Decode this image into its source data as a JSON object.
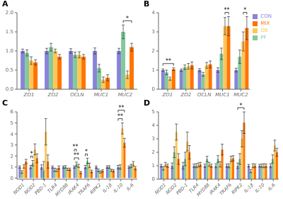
{
  "chart_data": [
    {
      "type": "bar",
      "title": "A",
      "categories": [
        "ZO1",
        "ZO2",
        "OCLN",
        "MUC1",
        "MUC2"
      ],
      "series": [
        {
          "name": "CON",
          "color": "#8884d8",
          "values": [
            1.0,
            1.0,
            1.0,
            1.0,
            1.0
          ],
          "errors": [
            0.05,
            0.07,
            0.06,
            0.08,
            0.07
          ]
        },
        {
          "name": "PF",
          "color": "#82ca9d",
          "values": [
            0.95,
            1.1,
            0.9,
            0.55,
            1.5
          ],
          "errors": [
            0.08,
            0.1,
            0.07,
            0.1,
            0.18
          ]
        },
        {
          "name": "OB",
          "color": "#ffc658",
          "values": [
            0.75,
            1.0,
            0.9,
            0.25,
            0.38
          ],
          "errors": [
            0.1,
            0.05,
            0.08,
            0.07,
            0.1
          ]
        },
        {
          "name": "MIX",
          "color": "#ff7300",
          "values": [
            0.7,
            0.85,
            0.85,
            0.3,
            1.1
          ],
          "errors": [
            0.07,
            0.06,
            0.06,
            0.08,
            0.1
          ]
        }
      ],
      "ylim": [
        0,
        2.0
      ],
      "yticks": [
        {
          "value": 0,
          "label": "0.0"
        },
        0.5,
        {
          "value": 1,
          "label": "1.0"
        },
        1.5,
        {
          "value": 2,
          "label": "2.0"
        }
      ],
      "annotations": [
        {
          "text": "*",
          "category": "MUC2",
          "from": "PF",
          "to": "MIX"
        }
      ]
    },
    {
      "type": "bar",
      "title": "B",
      "categories": [
        "ZO1",
        "ZO2",
        "OCLN",
        "MUC1",
        "MUC2"
      ],
      "series": [
        {
          "name": "CON",
          "color": "#8884d8",
          "values": [
            1.0,
            1.0,
            1.0,
            1.0,
            1.0
          ],
          "errors": [
            0.06,
            0.06,
            0.08,
            0.12,
            0.1
          ]
        },
        {
          "name": "PF",
          "color": "#82ca9d",
          "values": [
            0.88,
            1.15,
            0.78,
            1.85,
            1.7
          ],
          "errors": [
            0.12,
            0.12,
            0.1,
            0.3,
            0.35
          ]
        },
        {
          "name": "OB",
          "color": "#ffc658",
          "values": [
            0.55,
            1.2,
            1.25,
            3.3,
            2.5
          ],
          "errors": [
            0.08,
            0.15,
            0.15,
            0.45,
            0.5
          ]
        },
        {
          "name": "MIX",
          "color": "#ff7300",
          "values": [
            1.05,
            1.25,
            1.3,
            3.3,
            3.2
          ],
          "errors": [
            0.07,
            0.18,
            0.18,
            0.5,
            0.6
          ]
        }
      ],
      "ylim": [
        0,
        4.0
      ],
      "yticks": [
        0,
        1,
        2,
        3,
        4
      ],
      "legend": "upper right",
      "annotations": [
        {
          "text": "**",
          "category": "ZO1",
          "from": "CON",
          "to": "MIX"
        },
        {
          "text": "**",
          "category": "MUC1",
          "from": "OB",
          "to": "MIX"
        },
        {
          "text": "*",
          "category": "MUC2",
          "from": "OB",
          "to": "MIX"
        }
      ]
    },
    {
      "type": "bar",
      "title": "C",
      "categories": [
        "NOD1",
        "NOD2",
        "PBD-1",
        "TLR4",
        "MYD88",
        "IRAK4",
        "TRAF6",
        "RIPK2",
        "IL-1β",
        "IL-10",
        "IL-6"
      ],
      "series": [
        {
          "name": "CON",
          "color": "#8884d8",
          "values": [
            1.0,
            1.0,
            1.0,
            1.0,
            1.0,
            1.0,
            1.0,
            1.0,
            1.0,
            1.0,
            1.0
          ],
          "errors": [
            0.1,
            0.15,
            0.2,
            0.1,
            0.1,
            0.1,
            0.15,
            0.1,
            0.1,
            0.15,
            0.1
          ]
        },
        {
          "name": "PF",
          "color": "#82ca9d",
          "values": [
            0.55,
            1.35,
            0.7,
            0.75,
            1.0,
            1.25,
            1.55,
            0.7,
            1.0,
            1.0,
            1.1
          ],
          "errors": [
            0.12,
            0.25,
            0.8,
            0.15,
            0.12,
            0.2,
            0.25,
            0.12,
            0.12,
            0.2,
            0.15
          ]
        },
        {
          "name": "OB",
          "color": "#ffc658",
          "values": [
            1.05,
            2.6,
            4.2,
            0.7,
            0.8,
            1.1,
            1.15,
            0.55,
            0.7,
            4.5,
            1.3
          ],
          "errors": [
            0.15,
            0.5,
            1.2,
            0.12,
            0.1,
            0.15,
            0.2,
            0.1,
            0.1,
            0.5,
            0.2
          ]
        },
        {
          "name": "MIX",
          "color": "#ff7300",
          "values": [
            1.5,
            1.8,
            1.5,
            0.95,
            0.8,
            0.5,
            0.6,
            0.65,
            0.65,
            3.2,
            0.9
          ],
          "errors": [
            0.2,
            0.4,
            0.6,
            0.15,
            0.1,
            0.1,
            0.12,
            0.1,
            0.1,
            0.4,
            0.15
          ]
        }
      ],
      "ylim": [
        0,
        6.0
      ],
      "yticks": [
        0,
        1,
        2,
        3,
        4,
        5,
        6
      ],
      "annotations": [
        {
          "text": "*",
          "category": "NOD2",
          "from": "CON",
          "to": "PF"
        },
        {
          "text": "**",
          "category": "IRAK4",
          "from": "CON",
          "to": "OB"
        },
        {
          "text": "**",
          "category": "IRAK4",
          "from": "CON",
          "to": "PF"
        },
        {
          "text": "*",
          "category": "TRAF6",
          "from": "CON",
          "to": "PF"
        },
        {
          "text": "**",
          "category": "IL-10",
          "from": "CON",
          "to": "OB"
        },
        {
          "text": "**",
          "category": "IL-10",
          "from": "CON",
          "to": "MIX"
        }
      ]
    },
    {
      "type": "bar",
      "title": "D",
      "categories": [
        "NOD1",
        "NOD2",
        "PBD-1",
        "TLR4",
        "MYD88",
        "IRAK4",
        "TRAF6",
        "RIPK2",
        "IL-1β",
        "IL-10",
        "IL-6"
      ],
      "series": [
        {
          "name": "CON",
          "color": "#8884d8",
          "values": [
            1.0,
            1.0,
            1.0,
            1.0,
            1.0,
            1.0,
            1.0,
            1.0,
            1.0,
            1.0,
            1.0
          ],
          "errors": [
            0.1,
            0.2,
            0.25,
            0.12,
            0.12,
            0.15,
            0.12,
            0.2,
            0.1,
            0.1,
            0.15
          ]
        },
        {
          "name": "PF",
          "color": "#82ca9d",
          "values": [
            0.8,
            2.0,
            1.5,
            1.0,
            1.5,
            1.5,
            1.0,
            1.5,
            0.6,
            1.0,
            1.5
          ],
          "errors": [
            0.12,
            0.4,
            0.5,
            0.15,
            0.2,
            0.25,
            0.15,
            0.4,
            0.12,
            0.12,
            0.3
          ]
        },
        {
          "name": "OB",
          "color": "#ffc658",
          "values": [
            1.1,
            3.5,
            2.8,
            1.05,
            1.1,
            1.1,
            1.5,
            3.0,
            1.0,
            1.0,
            2.5
          ],
          "errors": [
            0.15,
            0.6,
            0.7,
            0.15,
            0.15,
            0.2,
            0.2,
            0.6,
            0.15,
            0.15,
            0.4
          ]
        },
        {
          "name": "MIX",
          "color": "#ff7300",
          "values": [
            1.0,
            1.5,
            2.0,
            1.1,
            1.0,
            2.2,
            1.55,
            4.2,
            1.0,
            1.0,
            2.0
          ],
          "errors": [
            0.12,
            0.4,
            0.5,
            0.15,
            0.12,
            0.4,
            0.2,
            0.8,
            0.12,
            0.12,
            0.3
          ]
        }
      ],
      "ylim": [
        0,
        5.0
      ],
      "yticks": [
        0,
        1,
        2,
        3,
        4,
        5
      ],
      "annotations": [
        {
          "text": "*",
          "category": "RIPK2",
          "from": "CON",
          "to": "MIX"
        }
      ]
    }
  ]
}
